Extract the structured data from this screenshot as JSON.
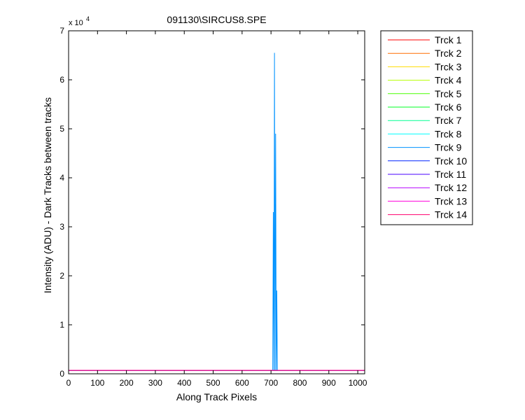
{
  "chart_data": {
    "type": "line",
    "title": "091130\\SIRCUS8.SPE",
    "xlabel": "Along Track Pixels",
    "ylabel": "Intensity (ADU) - Dark Tracks between tracks",
    "exponent_base": "x 10",
    "exponent_power": "4",
    "xlim": [
      0,
      1024
    ],
    "ylim": [
      0,
      70000
    ],
    "x_ticks": [
      0,
      100,
      200,
      300,
      400,
      500,
      600,
      700,
      800,
      900,
      1000
    ],
    "x_tick_labels": [
      "0",
      "100",
      "200",
      "300",
      "400",
      "500",
      "600",
      "700",
      "800",
      "900",
      "1000"
    ],
    "y_ticks": [
      0,
      10000,
      20000,
      30000,
      40000,
      50000,
      60000,
      70000
    ],
    "y_tick_labels": [
      "0",
      "1",
      "2",
      "3",
      "4",
      "5",
      "6",
      "7"
    ],
    "grid": false,
    "legend_position": "outside-right",
    "baseline_value": 700,
    "series": [
      {
        "name": "Trck 1",
        "color": "#ff0000",
        "x": [
          0,
          1024
        ],
        "y": [
          700,
          700
        ]
      },
      {
        "name": "Trck 2",
        "color": "#ff6e00",
        "x": [
          0,
          1024
        ],
        "y": [
          700,
          700
        ]
      },
      {
        "name": "Trck 3",
        "color": "#ffdc00",
        "x": [
          0,
          1024
        ],
        "y": [
          700,
          700
        ]
      },
      {
        "name": "Trck 4",
        "color": "#b6ff00",
        "x": [
          0,
          1024
        ],
        "y": [
          700,
          700
        ]
      },
      {
        "name": "Trck 5",
        "color": "#49ff00",
        "x": [
          0,
          1024
        ],
        "y": [
          700,
          700
        ]
      },
      {
        "name": "Trck 6",
        "color": "#00ff24",
        "x": [
          0,
          1024
        ],
        "y": [
          700,
          700
        ]
      },
      {
        "name": "Trck 7",
        "color": "#00ff92",
        "x": [
          0,
          1024
        ],
        "y": [
          700,
          700
        ]
      },
      {
        "name": "Trck 8",
        "color": "#00ffff",
        "x": [
          0,
          1024
        ],
        "y": [
          700,
          700
        ]
      },
      {
        "name": "Trck 9",
        "color": "#0092ff",
        "x": [
          0,
          706,
          708,
          710,
          712,
          714,
          716,
          718,
          720,
          722,
          1024
        ],
        "y": [
          700,
          700,
          33000,
          700,
          65500,
          700,
          49000,
          700,
          17000,
          700,
          700
        ]
      },
      {
        "name": "Trck 10",
        "color": "#0024ff",
        "x": [
          0,
          1024
        ],
        "y": [
          700,
          700
        ]
      },
      {
        "name": "Trck 11",
        "color": "#4900ff",
        "x": [
          0,
          1024
        ],
        "y": [
          700,
          700
        ]
      },
      {
        "name": "Trck 12",
        "color": "#b600ff",
        "x": [
          0,
          1024
        ],
        "y": [
          700,
          700
        ]
      },
      {
        "name": "Trck 13",
        "color": "#ff00dc",
        "x": [
          0,
          1024
        ],
        "y": [
          700,
          700
        ]
      },
      {
        "name": "Trck 14",
        "color": "#ff006e",
        "x": [
          0,
          1024
        ],
        "y": [
          700,
          700
        ]
      }
    ]
  }
}
